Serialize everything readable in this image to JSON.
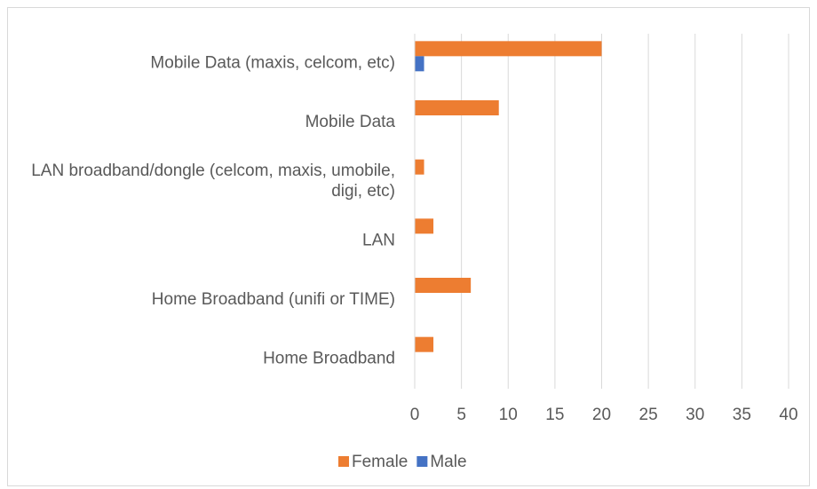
{
  "chart_data": {
    "type": "bar",
    "orientation": "horizontal",
    "categories": [
      "Mobile Data (maxis, celcom, etc)",
      "Mobile Data",
      "LAN broadband/dongle (celcom, maxis, umobile, digi, etc)",
      "LAN",
      "Home Broadband (unifi or TIME)",
      "Home Broadband"
    ],
    "series": [
      {
        "name": "Female",
        "color": "#ed7d31",
        "values": [
          20,
          9,
          1,
          2,
          6,
          2
        ]
      },
      {
        "name": "Male",
        "color": "#4472c4",
        "values": [
          1,
          0,
          0,
          0,
          0,
          0
        ]
      }
    ],
    "xlim": [
      0,
      40
    ],
    "xticks": [
      0,
      5,
      10,
      15,
      20,
      25,
      30,
      35,
      40
    ],
    "grid": true,
    "legend": "bottom"
  }
}
